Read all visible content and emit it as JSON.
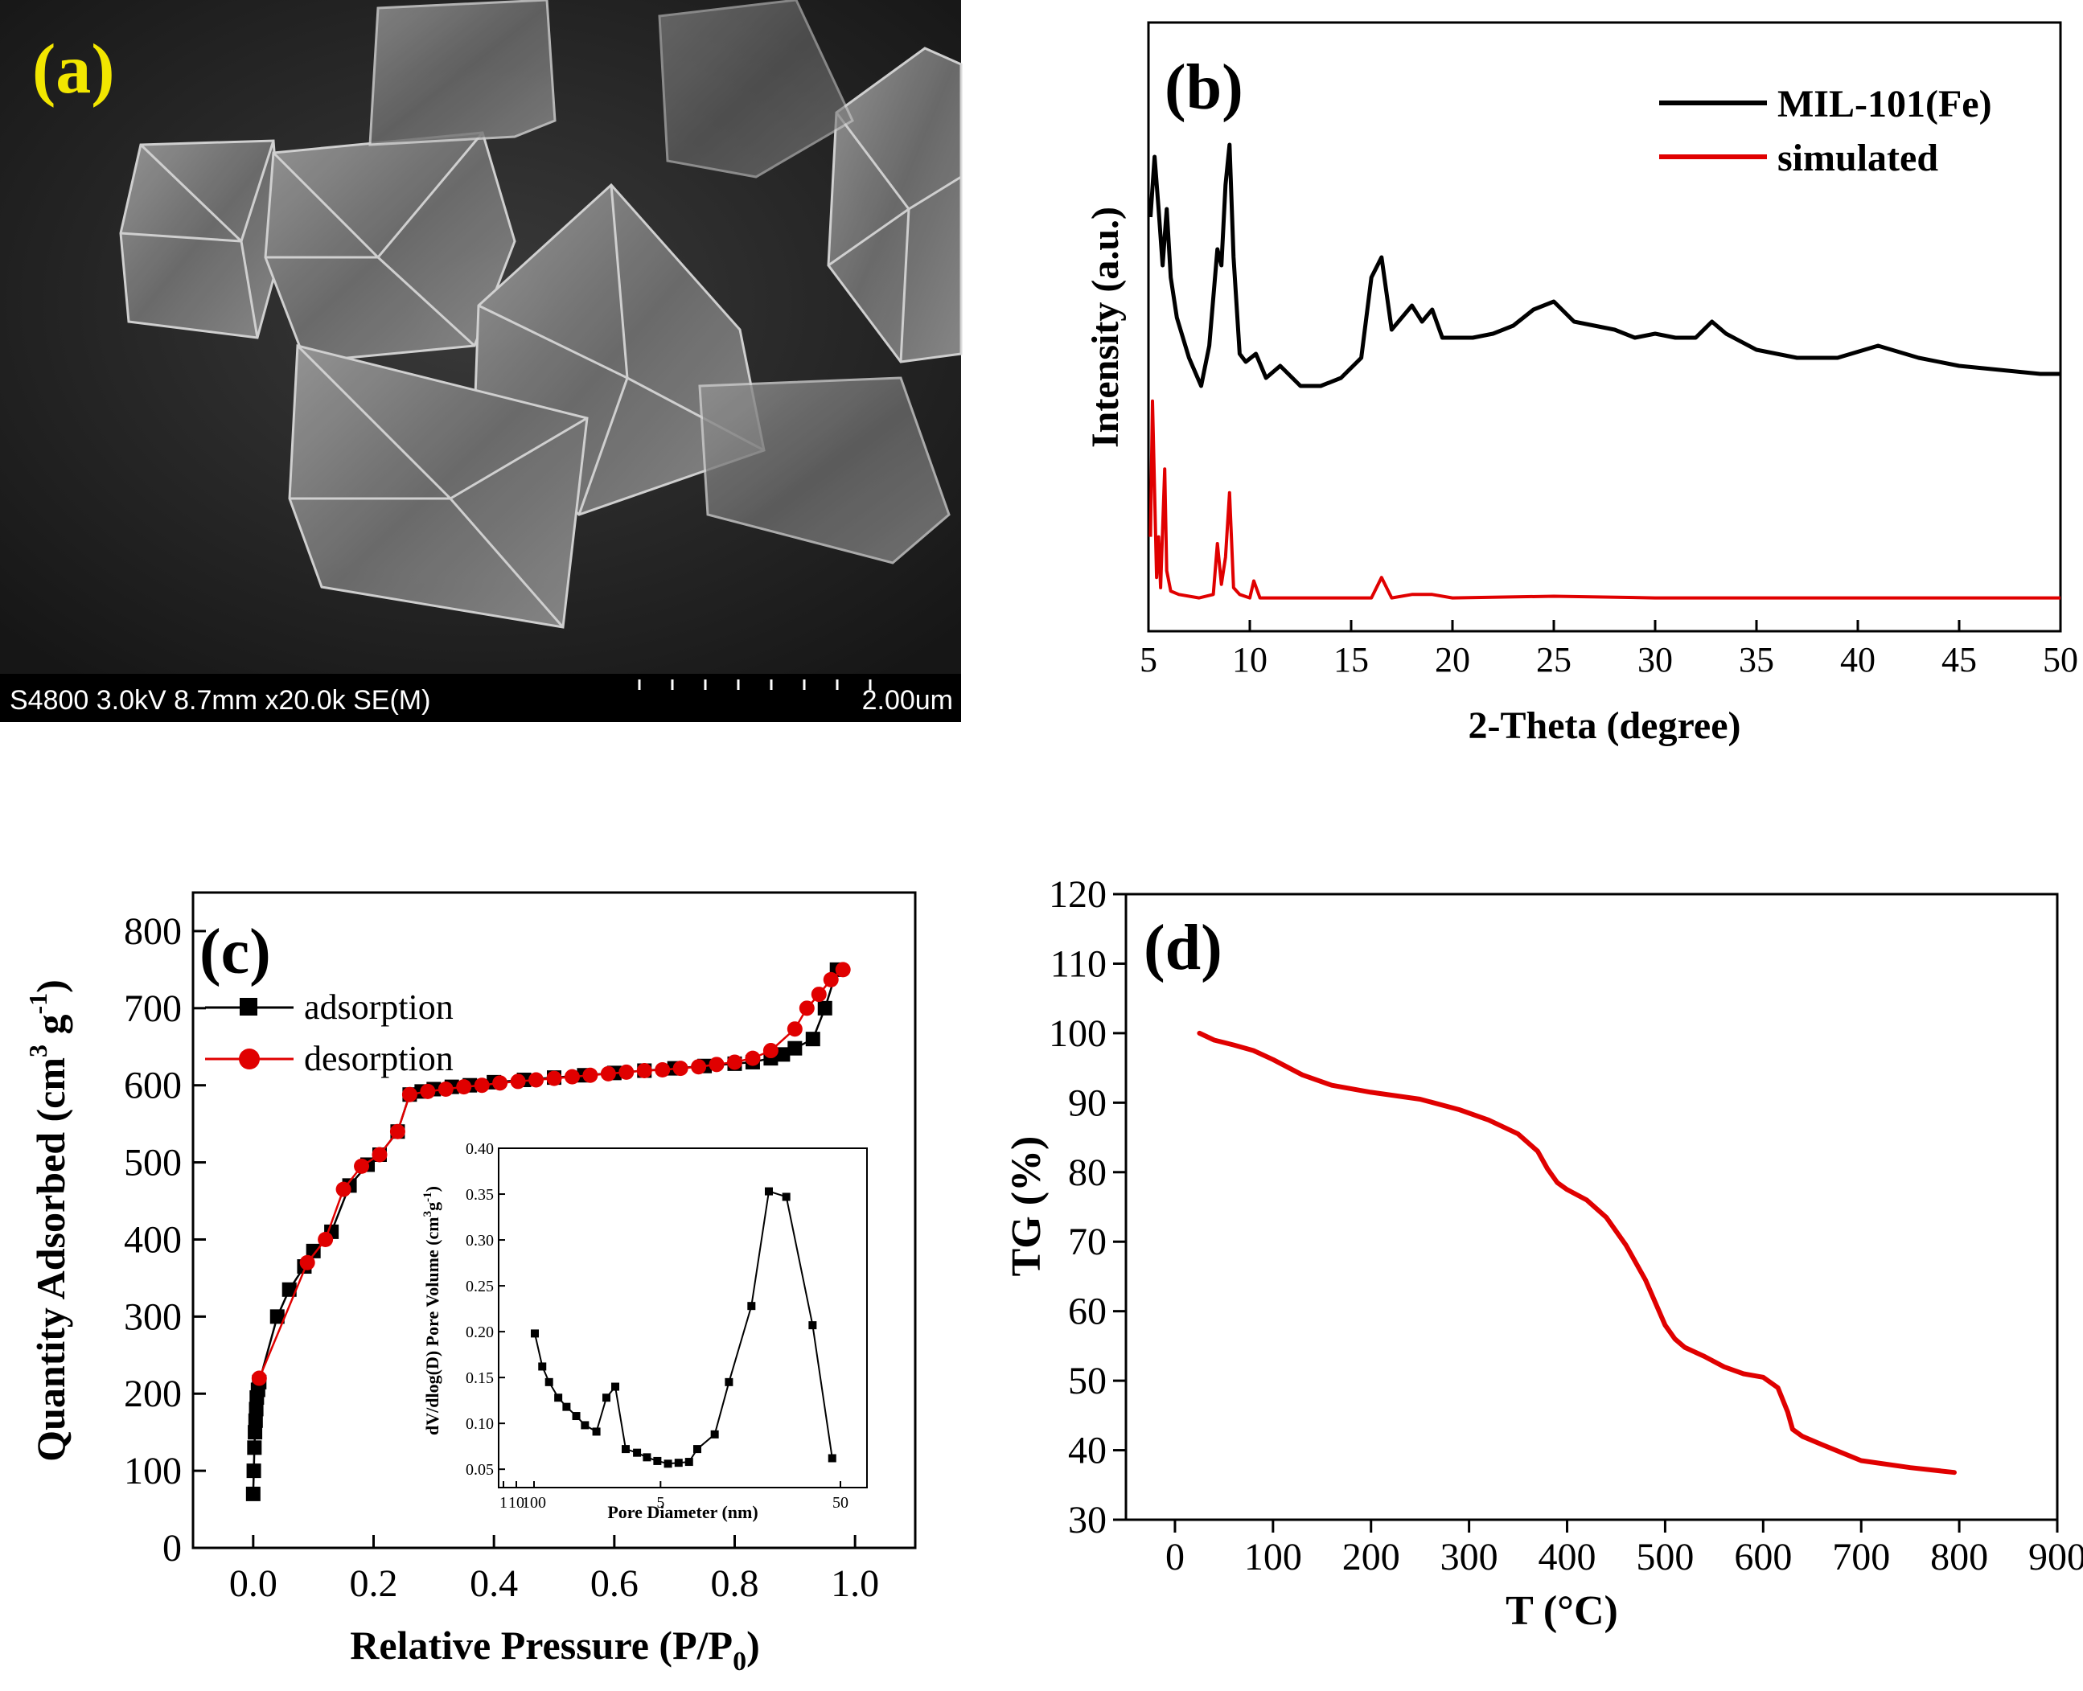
{
  "panels": {
    "a": {
      "label": "(a)",
      "sem_info": "S4800 3.0kV 8.7mm x20.0k SE(M)",
      "scale_label": "2.00um",
      "label_color": "#f2e600"
    },
    "b": {
      "label": "(b)"
    },
    "c": {
      "label": "(c)"
    },
    "d": {
      "label": "(d)"
    }
  },
  "chart_data": [
    {
      "panel": "b",
      "type": "line",
      "xlabel": "2-Theta (degree)",
      "ylabel": "Intensity (a.u.)",
      "xlim": [
        5,
        50
      ],
      "xticks": [
        5,
        10,
        15,
        20,
        25,
        30,
        35,
        40,
        45,
        50
      ],
      "ylim": [
        0,
        100
      ],
      "legend_position": "top-right",
      "series": [
        {
          "name": "MIL-101(Fe)",
          "color": "#000000",
          "x": [
            5.1,
            5.3,
            5.5,
            5.7,
            5.9,
            6.1,
            6.4,
            7.0,
            7.6,
            8.0,
            8.4,
            8.6,
            8.8,
            9.0,
            9.2,
            9.5,
            9.8,
            10.3,
            10.8,
            11.5,
            12.5,
            13.5,
            14.5,
            15.5,
            16.0,
            16.5,
            17.0,
            17.5,
            18.0,
            18.5,
            19.0,
            19.5,
            20,
            21,
            22,
            23,
            24,
            25,
            26,
            27,
            28,
            29,
            30,
            31,
            32,
            32.8,
            33.5,
            35,
            37,
            39,
            41,
            43,
            45,
            47,
            49,
            50
          ],
          "y": [
            70,
            85,
            72,
            58,
            72,
            55,
            45,
            35,
            28,
            38,
            62,
            58,
            78,
            88,
            60,
            36,
            34,
            36,
            30,
            33,
            28,
            28,
            30,
            35,
            55,
            60,
            42,
            45,
            48,
            44,
            47,
            40,
            40,
            40,
            41,
            43,
            47,
            49,
            44,
            43,
            42,
            40,
            41,
            40,
            40,
            44,
            41,
            37,
            35,
            35,
            38,
            35,
            33,
            32,
            31,
            31
          ]
        },
        {
          "name": "simulated",
          "color": "#e00000",
          "x": [
            5.1,
            5.2,
            5.4,
            5.5,
            5.6,
            5.8,
            5.9,
            6.1,
            6.5,
            7.5,
            8.2,
            8.4,
            8.6,
            8.8,
            9.0,
            9.2,
            9.5,
            10.0,
            10.2,
            10.5,
            11,
            12,
            14,
            16,
            16.5,
            17.0,
            18,
            19,
            20,
            25,
            30,
            35,
            40,
            45,
            50
          ],
          "y": [
            20,
            60,
            8,
            20,
            5,
            40,
            10,
            4,
            3,
            2,
            3,
            18,
            6,
            14,
            33,
            5,
            3,
            2,
            7,
            2,
            2,
            2,
            2,
            2,
            8,
            2,
            3,
            3,
            2,
            2.5,
            2,
            2,
            2,
            2,
            2
          ]
        }
      ]
    },
    {
      "panel": "c",
      "type": "line",
      "xlabel": "Relative Pressure (P/P",
      "xlabel_sub": "0",
      "xlabel_close": ")",
      "ylabel": "Quantity Adsorbed (cm",
      "ylabel_sup": "3",
      "ylabel_mid": " g",
      "ylabel_sup2": "-1",
      "ylabel_close": ")",
      "xlim": [
        -0.1,
        1.1
      ],
      "ylim": [
        0,
        850
      ],
      "xticks": [
        "0.0",
        "0.2",
        "0.4",
        "0.6",
        "0.8",
        "1.0"
      ],
      "yticks": [
        "0",
        "100",
        "200",
        "300",
        "400",
        "500",
        "600",
        "700",
        "800"
      ],
      "legend_position": "top-left",
      "series": [
        {
          "name": "adsorption",
          "color": "#000000",
          "marker": "square",
          "x": [
            0.0,
            0.001,
            0.002,
            0.003,
            0.004,
            0.005,
            0.006,
            0.008,
            0.01,
            0.04,
            0.06,
            0.085,
            0.1,
            0.13,
            0.16,
            0.19,
            0.21,
            0.24,
            0.26,
            0.28,
            0.3,
            0.33,
            0.36,
            0.4,
            0.45,
            0.5,
            0.55,
            0.6,
            0.65,
            0.7,
            0.75,
            0.8,
            0.83,
            0.86,
            0.88,
            0.9,
            0.93,
            0.95,
            0.97
          ],
          "y": [
            70,
            100,
            130,
            150,
            165,
            180,
            195,
            205,
            215,
            300,
            335,
            365,
            385,
            410,
            470,
            497,
            510,
            540,
            588,
            592,
            595,
            598,
            600,
            604,
            607,
            610,
            613,
            616,
            619,
            622,
            625,
            628,
            630,
            635,
            640,
            648,
            660,
            700,
            750
          ]
        },
        {
          "name": "desorption",
          "color": "#e00000",
          "marker": "circle",
          "x": [
            0.98,
            0.96,
            0.94,
            0.92,
            0.9,
            0.86,
            0.83,
            0.8,
            0.77,
            0.74,
            0.71,
            0.68,
            0.65,
            0.62,
            0.59,
            0.56,
            0.53,
            0.5,
            0.47,
            0.44,
            0.41,
            0.38,
            0.35,
            0.32,
            0.29,
            0.26,
            0.24,
            0.21,
            0.18,
            0.15,
            0.12,
            0.09,
            0.01
          ],
          "y": [
            750,
            737,
            718,
            700,
            673,
            645,
            635,
            630,
            627,
            624,
            622,
            620,
            619,
            617,
            615,
            613,
            611,
            609,
            607,
            605,
            603,
            600,
            598,
            595,
            592,
            588,
            540,
            510,
            495,
            465,
            400,
            370,
            220
          ]
        }
      ]
    },
    {
      "panel": "c-inset",
      "type": "line",
      "xlabel": "Pore Diameter (nm)",
      "ylabel": "dV/dlog(D) Pore Volume (cm",
      "ylabel_sup": "3",
      "ylabel_mid": "g",
      "ylabel_sup2": "-1",
      "ylabel_close": ")",
      "x_scale": "log",
      "ylim": [
        0.03,
        0.4
      ],
      "yticks": [
        "0.05",
        "0.10",
        "0.15",
        "0.20",
        "0.25",
        "0.30",
        "0.35",
        "0.40"
      ],
      "xtick_labels": [
        "1",
        "10",
        "100",
        "5",
        "50"
      ],
      "series": [
        {
          "name": "",
          "color": "#000000",
          "marker": "square",
          "x": [
            1.0,
            1.1,
            1.2,
            1.35,
            1.5,
            1.7,
            1.9,
            2.2,
            2.5,
            2.8,
            3.2,
            3.7,
            4.2,
            4.8,
            5.5,
            6.3,
            7.2,
            8.0,
            10,
            12,
            16,
            20,
            25,
            35,
            45
          ],
          "y": [
            0.198,
            0.162,
            0.145,
            0.128,
            0.118,
            0.108,
            0.098,
            0.091,
            0.128,
            0.14,
            0.072,
            0.068,
            0.063,
            0.059,
            0.056,
            0.057,
            0.058,
            0.072,
            0.088,
            0.145,
            0.228,
            0.353,
            0.347,
            0.207,
            0.062
          ]
        }
      ]
    },
    {
      "panel": "d",
      "type": "line",
      "xlabel": "T (°C)",
      "ylabel": "TG (%)",
      "xlim": [
        -50,
        900
      ],
      "ylim": [
        30,
        120
      ],
      "xticks": [
        "0",
        "100",
        "200",
        "300",
        "400",
        "500",
        "600",
        "700",
        "800",
        "900"
      ],
      "yticks": [
        "30",
        "40",
        "50",
        "60",
        "70",
        "80",
        "90",
        "100",
        "110",
        "120"
      ],
      "series": [
        {
          "name": "",
          "color": "#e00000",
          "x": [
            25,
            40,
            60,
            80,
            100,
            130,
            160,
            200,
            250,
            290,
            320,
            350,
            370,
            380,
            390,
            400,
            420,
            440,
            460,
            480,
            500,
            510,
            520,
            540,
            560,
            580,
            600,
            615,
            625,
            630,
            640,
            660,
            700,
            750,
            795
          ],
          "y": [
            100,
            99,
            98.3,
            97.5,
            96.2,
            94,
            92.5,
            91.5,
            90.5,
            89,
            87.5,
            85.5,
            83,
            80.5,
            78.5,
            77.5,
            76,
            73.5,
            69.5,
            64.5,
            58,
            56,
            54.8,
            53.5,
            52,
            51,
            50.5,
            49,
            45.5,
            43,
            42,
            40.8,
            38.5,
            37.5,
            36.8
          ]
        }
      ]
    }
  ]
}
